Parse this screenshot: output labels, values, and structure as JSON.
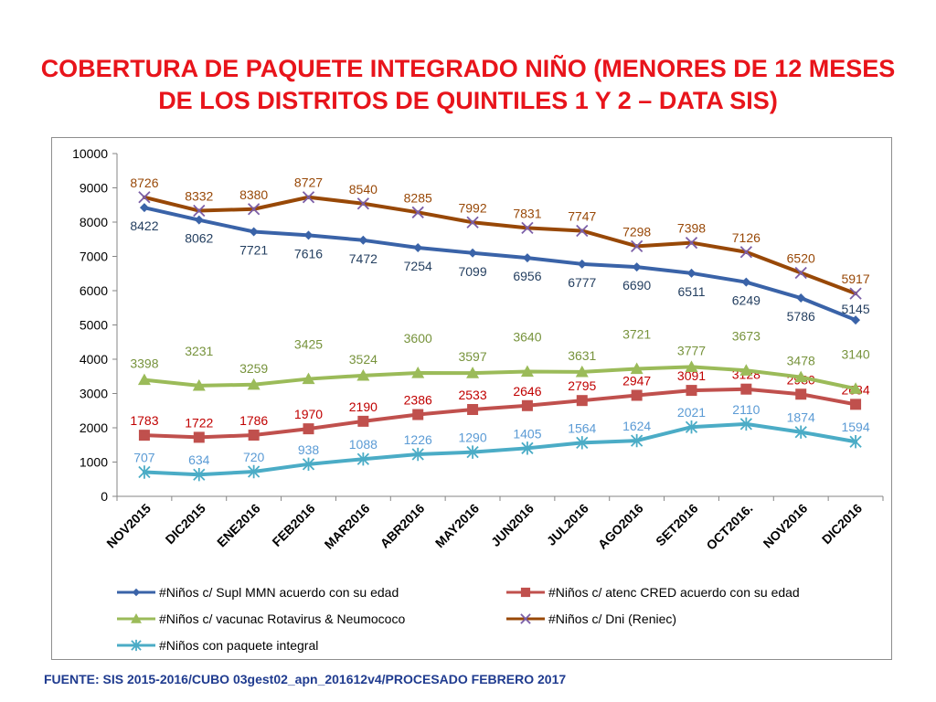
{
  "title": "COBERTURA DE PAQUETE INTEGRADO NIÑO (MENORES DE 12 MESES DE LOS DISTRITOS DE QUINTILES 1 Y 2 – DATA SIS)",
  "source": "FUENTE: SIS 2015-2016/CUBO 03gest02_apn_201612v4/PROCESADO FEBRERO 2017",
  "chart_data": {
    "type": "line",
    "title": "COBERTURA DE PAQUETE INTEGRADO NIÑO (MENORES DE 12 MESES DE LOS DISTRITOS DE QUINTILES 1 Y 2 – DATA SIS)",
    "xlabel": "",
    "ylabel": "",
    "ylim": [
      0,
      10000
    ],
    "yticks": [
      0,
      1000,
      2000,
      3000,
      4000,
      5000,
      6000,
      7000,
      8000,
      9000,
      10000
    ],
    "grid": false,
    "legend_position": "bottom",
    "categories": [
      "NOV2015",
      "DIC2015",
      "ENE2016",
      "FEB2016",
      "MAR2016",
      "ABR2016",
      "MAY2016",
      "JUN2016",
      "JUL2016",
      "AGO2016",
      "SET2016",
      "OCT2016.",
      "NOV2016",
      "DIC2016"
    ],
    "series": [
      {
        "name": "#Niños c/ Supl MMN acuerdo con su edad",
        "color": "#3a63a8",
        "label_color": "#243f60",
        "marker": "diamond",
        "values": [
          8422,
          8062,
          7721,
          7616,
          7472,
          7254,
          7099,
          6956,
          6777,
          6690,
          6511,
          6249,
          5786,
          5145
        ]
      },
      {
        "name": "#Niños c/ atenc CRED acuerdo con su edad",
        "color": "#c0504d",
        "label_color": "#c00000",
        "marker": "square",
        "values": [
          1783,
          1722,
          1786,
          1970,
          2190,
          2386,
          2533,
          2646,
          2795,
          2947,
          3091,
          3128,
          2980,
          2684
        ]
      },
      {
        "name": "#Niños c/ vacunac Rotavirus & Neumococo",
        "color": "#9bbb59",
        "label_color": "#77933c",
        "marker": "triangle",
        "values": [
          3398,
          3231,
          3259,
          3425,
          3524,
          3600,
          3597,
          3640,
          3631,
          3721,
          3777,
          3673,
          3478,
          3140
        ]
      },
      {
        "name": "#Niños c/ Dni (Reniec)",
        "color": "#984807",
        "label_color": "#984807",
        "marker": "x",
        "values": [
          8726,
          8332,
          8380,
          8727,
          8540,
          8285,
          7992,
          7831,
          7747,
          7298,
          7398,
          7126,
          6520,
          5917
        ]
      },
      {
        "name": "#Niños con paquete integral",
        "color": "#4bacc6",
        "label_color": "#5b9bd5",
        "marker": "star",
        "values": [
          707,
          634,
          720,
          938,
          1088,
          1226,
          1290,
          1405,
          1564,
          1624,
          2021,
          2110,
          1874,
          1594
        ]
      }
    ]
  }
}
